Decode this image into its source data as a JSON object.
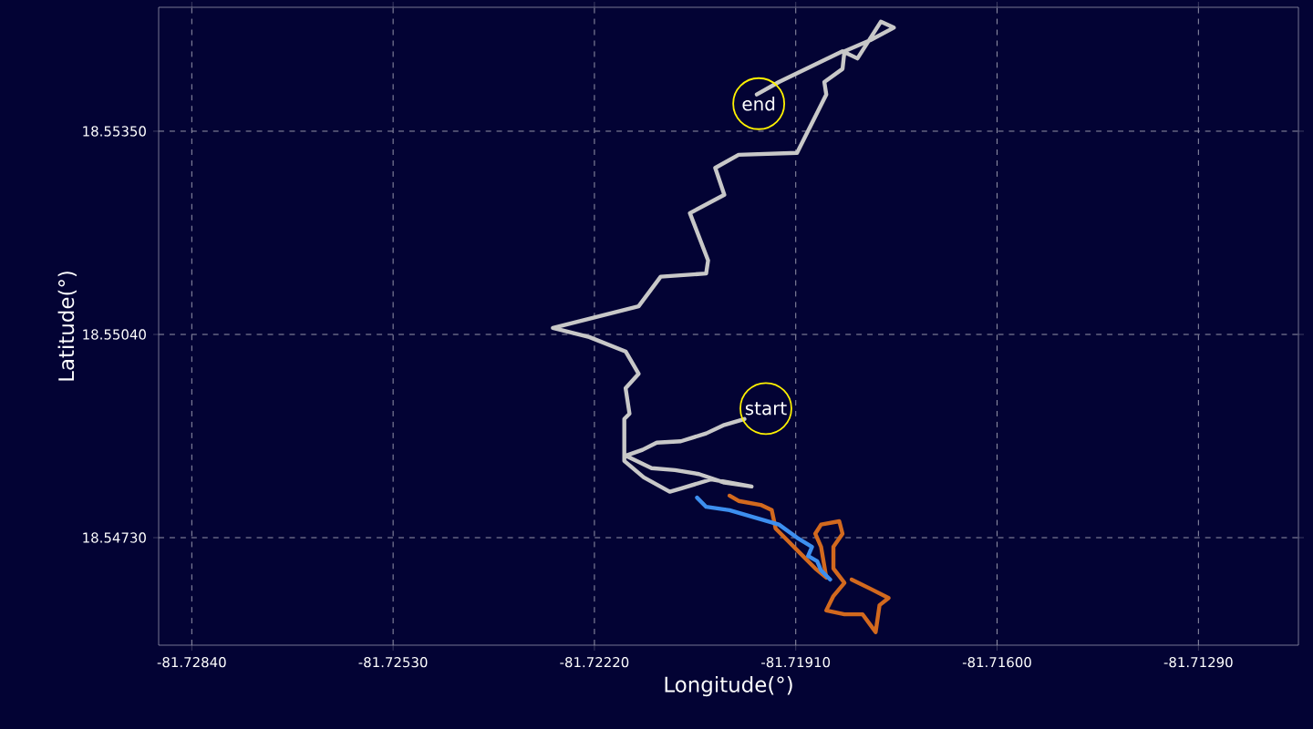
{
  "chart_data": {
    "type": "line",
    "xlabel": "Longitude(°)",
    "ylabel": "Latitude(°)",
    "xlim": [
      -81.72891,
      -81.71136
    ],
    "ylim": [
      18.54566,
      18.55539
    ],
    "xticks": [
      {
        "value": -81.7284,
        "label": "-81.72840"
      },
      {
        "value": -81.7253,
        "label": "-81.72530"
      },
      {
        "value": -81.7222,
        "label": "-81.72220"
      },
      {
        "value": -81.7191,
        "label": "-81.71910"
      },
      {
        "value": -81.716,
        "label": "-81.71600"
      },
      {
        "value": -81.7129,
        "label": "-81.71290"
      }
    ],
    "yticks": [
      {
        "value": 18.5473,
        "label": "18.54730"
      },
      {
        "value": 18.5504,
        "label": "18.55040"
      },
      {
        "value": 18.5535,
        "label": "18.55350"
      }
    ],
    "grid": true,
    "marker": "none",
    "line_style": "solid",
    "series": [
      {
        "color": "#c8c8c8",
        "x": [
          -81.71989,
          -81.7202,
          -81.72048,
          -81.72087,
          -81.72124,
          -81.72146,
          -81.72172,
          -81.72132,
          -81.72096,
          -81.72059,
          -81.7202,
          -81.71978,
          -81.7204,
          -81.72087,
          -81.72104,
          -81.72144,
          -81.72174,
          -81.72174,
          -81.72166,
          -81.72172,
          -81.72152,
          -81.72172,
          -81.72228,
          -81.72284,
          -81.72152,
          -81.72118,
          -81.72048,
          -81.72045,
          -81.72073,
          -81.7202,
          -81.72034,
          -81.71998,
          -81.71908,
          -81.71863,
          -81.71866,
          -81.71838,
          -81.71835,
          -81.71795,
          -81.71759,
          -81.71779,
          -81.71815,
          -81.71838,
          -81.71936,
          -81.7197
        ],
        "values": [
          18.54911,
          18.54902,
          18.54889,
          18.54877,
          18.54875,
          18.54864,
          18.54855,
          18.54836,
          18.54833,
          18.54827,
          18.54814,
          18.54808,
          18.54819,
          18.54805,
          18.548,
          18.54822,
          18.54847,
          18.54911,
          18.54919,
          18.54958,
          18.5498,
          18.55014,
          18.55036,
          18.5505,
          18.55083,
          18.55128,
          18.55133,
          18.55153,
          18.55225,
          18.55253,
          18.55294,
          18.55314,
          18.55317,
          18.55406,
          18.55425,
          18.55445,
          18.55472,
          18.55489,
          18.55508,
          18.55517,
          18.55461,
          18.55472,
          18.55425,
          18.55406
        ]
      },
      {
        "color": "#d2691e",
        "x": [
          -81.72012,
          -81.71998,
          -81.71964,
          -81.71947,
          -81.71941,
          -81.71919,
          -81.71899,
          -81.7188,
          -81.71863,
          -81.71871,
          -81.7188,
          -81.71871,
          -81.71843,
          -81.71838,
          -81.71852,
          -81.71852,
          -81.71835,
          -81.71852,
          -81.71863,
          -81.71835,
          -81.71807,
          -81.71787,
          -81.71781,
          -81.71767,
          -81.71795,
          -81.71824
        ],
        "values": [
          18.54794,
          18.54786,
          18.5478,
          18.54772,
          18.54744,
          18.54722,
          18.54702,
          18.54683,
          18.54669,
          18.54716,
          18.54736,
          18.5475,
          18.54755,
          18.54736,
          18.54716,
          18.54683,
          18.54661,
          18.54641,
          18.54619,
          18.54613,
          18.54613,
          18.54586,
          18.54627,
          18.54638,
          18.54652,
          18.54666
        ]
      },
      {
        "color": "#3d8fef",
        "x": [
          -81.72062,
          -81.72048,
          -81.72012,
          -81.71936,
          -81.71908,
          -81.71885,
          -81.71891,
          -81.71877,
          -81.71871,
          -81.71857
        ],
        "values": [
          18.54791,
          18.54777,
          18.54772,
          18.5475,
          18.5473,
          18.54716,
          18.54702,
          18.54694,
          18.5468,
          18.54666
        ]
      }
    ],
    "annotations": [
      {
        "text": "start",
        "x": -81.71956,
        "y": 18.54927
      },
      {
        "text": "end",
        "x": -81.71967,
        "y": 18.55392
      }
    ]
  }
}
